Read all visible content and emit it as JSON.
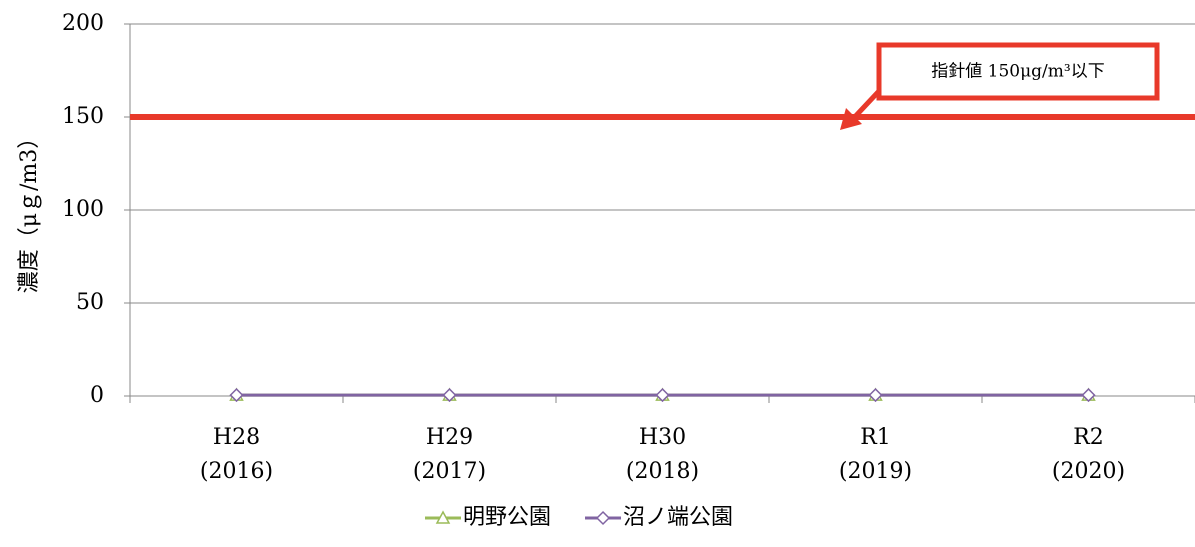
{
  "chart_data": {
    "type": "line",
    "y_label": "濃度（μｇ/m3）",
    "categories": [
      "H28\n(2016)",
      "H29\n(2017)",
      "H30\n(2018)",
      "R1\n(2019)",
      "R2\n(2020)"
    ],
    "series": [
      {
        "name": "明野公園",
        "color": "#9bbb59",
        "marker": "triangle",
        "values": [
          0.5,
          0.5,
          0.5,
          0.5,
          0.5
        ]
      },
      {
        "name": "沼ノ端公園",
        "color": "#8064a2",
        "marker": "diamond",
        "values": [
          0.5,
          0.5,
          0.5,
          0.5,
          0.5
        ]
      }
    ],
    "ylim": [
      0,
      200
    ],
    "yticks": [
      0,
      50,
      100,
      150,
      200
    ],
    "grid": true,
    "hline": {
      "value": 150,
      "color": "#e8392a"
    },
    "annotation": "指針値 150μg/m³以下",
    "legend": "bottom"
  }
}
